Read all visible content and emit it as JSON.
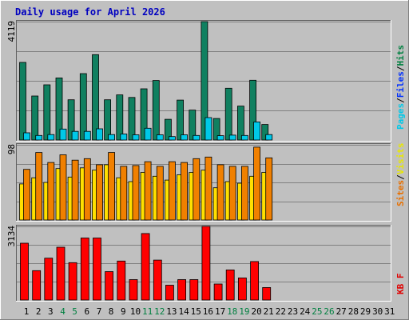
{
  "chart_data": [
    {
      "type": "bar",
      "title": "Daily usage for April 2026",
      "panel": "top",
      "ylim": [
        0,
        4119
      ],
      "y_tick_label": "4119",
      "legend": [
        "Pages",
        "Files",
        "Hits"
      ],
      "legend_colors": [
        "#00c8e8",
        "#0030ff",
        "#008040"
      ],
      "categories": [
        "1",
        "2",
        "3",
        "4",
        "5",
        "6",
        "7",
        "8",
        "9",
        "10",
        "11",
        "12",
        "13",
        "14",
        "15",
        "16",
        "17",
        "18",
        "19",
        "20",
        "21",
        "22",
        "23",
        "24",
        "25",
        "26",
        "27",
        "28",
        "29",
        "30",
        "31"
      ],
      "series": [
        {
          "name": "Hits",
          "color": "#108060",
          "values": [
            2700,
            1530,
            1920,
            2160,
            1400,
            2310,
            2970,
            1400,
            1570,
            1480,
            1780,
            2070,
            720,
            1390,
            1040,
            4119,
            750,
            1800,
            1180,
            2080,
            540,
            0,
            0,
            0,
            0,
            0,
            0,
            0,
            0,
            0,
            0
          ]
        },
        {
          "name": "Files",
          "color": "#00c8e8",
          "values": [
            250,
            160,
            190,
            380,
            300,
            300,
            390,
            190,
            210,
            180,
            410,
            180,
            120,
            180,
            160,
            780,
            150,
            170,
            160,
            630,
            190,
            0,
            0,
            0,
            0,
            0,
            0,
            0,
            0,
            0,
            0
          ]
        }
      ]
    },
    {
      "type": "bar",
      "panel": "middle",
      "ylim": [
        0,
        98
      ],
      "y_tick_label": "98",
      "legend": [
        "Sites",
        "Visits"
      ],
      "legend_colors": [
        "#e87000",
        "#e8e800"
      ],
      "series": [
        {
          "name": "Visits",
          "color": "#ffe000",
          "values": [
            47,
            55,
            49,
            67,
            56,
            68,
            65,
            72,
            55,
            50,
            62,
            57,
            52,
            59,
            62,
            65,
            42,
            50,
            48,
            57,
            62,
            0,
            0,
            0,
            0,
            0,
            0,
            0,
            0,
            0,
            0
          ]
        },
        {
          "name": "Sites",
          "color": "#f08000",
          "values": [
            66,
            88,
            75,
            85,
            78,
            80,
            72,
            88,
            70,
            71,
            76,
            70,
            76,
            75,
            80,
            82,
            72,
            70,
            70,
            95,
            81,
            0,
            0,
            0,
            0,
            0,
            0,
            0,
            0,
            0,
            0
          ]
        }
      ]
    },
    {
      "type": "bar",
      "panel": "bottom",
      "ylim": [
        0,
        3134
      ],
      "y_tick_label": "3134",
      "legend": [
        "KB F"
      ],
      "legend_colors": [
        "#e00000"
      ],
      "series": [
        {
          "name": "KB F",
          "color": "#ff0000",
          "values": [
            2420,
            1250,
            1780,
            2250,
            1590,
            2640,
            2640,
            1210,
            1660,
            870,
            2830,
            1700,
            630,
            870,
            870,
            3134,
            680,
            1280,
            940,
            1640,
            530,
            0,
            0,
            0,
            0,
            0,
            0,
            0,
            0,
            0,
            0
          ]
        }
      ]
    }
  ],
  "x_tick_colors": [
    "#000000",
    "#000000",
    "#000000",
    "#008040",
    "#008040",
    "#000000",
    "#000000",
    "#000000",
    "#000000",
    "#000000",
    "#008040",
    "#008040",
    "#000000",
    "#000000",
    "#000000",
    "#000000",
    "#000000",
    "#008040",
    "#008040",
    "#000000",
    "#000000",
    "#000000",
    "#000000",
    "#000000",
    "#008040",
    "#008040",
    "#000000",
    "#000000",
    "#000000",
    "#000000",
    "#000000"
  ],
  "colors": {
    "background": "#c0c0c0",
    "plot_bg": "#c0c0c0",
    "title": "#0000c0",
    "grid": "#808080"
  }
}
